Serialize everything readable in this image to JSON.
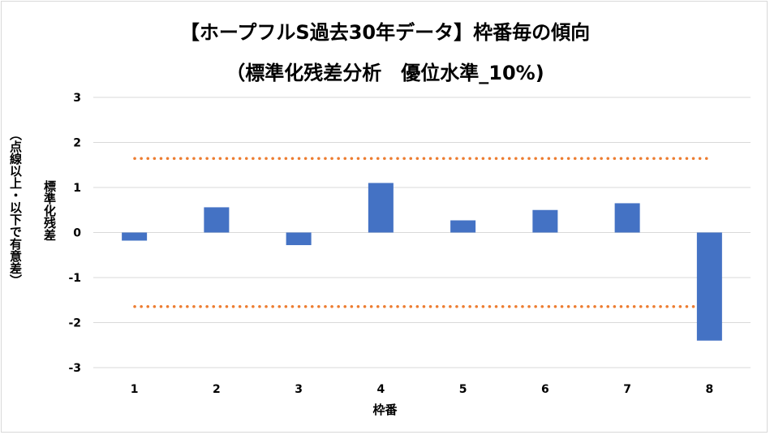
{
  "chart_data": {
    "type": "bar",
    "title": "【ホープフルS過去30年データ】枠番毎の傾向",
    "subtitle": "（標準化残差分析　優位水準_10%)",
    "xlabel": "枠番",
    "ylabel": "標準化残差",
    "ylabel_note": "（点線以上・以下で有意差）",
    "categories": [
      "1",
      "2",
      "3",
      "4",
      "5",
      "6",
      "7",
      "8"
    ],
    "values": [
      -0.18,
      0.56,
      -0.28,
      1.1,
      0.27,
      0.5,
      0.65,
      -2.4
    ],
    "ylim": [
      -3,
      3
    ],
    "yticks": [
      "3",
      "2",
      "1",
      "0",
      "-1",
      "-2",
      "-3"
    ],
    "threshold_lines": [
      1.645,
      -1.645
    ],
    "grid": true,
    "legend": "none",
    "colors": {
      "bar": "#4472c4",
      "threshold": "#ed7d31",
      "grid": "#d9d9d9"
    }
  }
}
